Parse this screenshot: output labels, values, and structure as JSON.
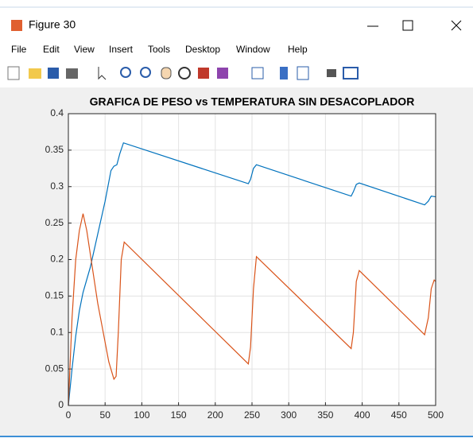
{
  "window": {
    "title": "Figure 30",
    "menu": [
      "File",
      "Edit",
      "View",
      "Insert",
      "Tools",
      "Desktop",
      "Window",
      "Help"
    ]
  },
  "chart_data": {
    "type": "line",
    "title": "GRAFICA DE PESO vs TEMPERATURA SIN DESACOPLADOR",
    "xlim": [
      0,
      500
    ],
    "xticks": [
      0,
      50,
      100,
      150,
      200,
      250,
      300,
      350,
      400,
      450,
      500
    ],
    "ylim": [
      0,
      0.4
    ],
    "yticks": [
      0,
      0.05,
      0.1,
      0.15,
      0.2,
      0.25,
      0.3,
      0.35,
      0.4
    ],
    "grid": true,
    "series": [
      {
        "color": "#0072bd",
        "x": [
          0,
          5,
          10,
          15,
          20,
          30,
          40,
          50,
          58,
          62,
          66,
          70,
          75,
          245,
          248,
          252,
          256,
          385,
          388,
          392,
          396,
          485,
          490,
          494,
          500
        ],
        "values": [
          0,
          0.05,
          0.095,
          0.13,
          0.155,
          0.19,
          0.235,
          0.28,
          0.322,
          0.328,
          0.33,
          0.345,
          0.36,
          0.304,
          0.31,
          0.325,
          0.33,
          0.287,
          0.293,
          0.303,
          0.305,
          0.275,
          0.28,
          0.287,
          0.286
        ]
      },
      {
        "color": "#d95319",
        "x": [
          0,
          5,
          10,
          15,
          20,
          25,
          40,
          55,
          62,
          65,
          68,
          72,
          76,
          245,
          248,
          252,
          256,
          385,
          388,
          392,
          396,
          485,
          490,
          494,
          498,
          500
        ],
        "values": [
          0,
          0.12,
          0.2,
          0.24,
          0.263,
          0.24,
          0.14,
          0.06,
          0.036,
          0.04,
          0.1,
          0.2,
          0.224,
          0.057,
          0.08,
          0.16,
          0.204,
          0.078,
          0.1,
          0.17,
          0.185,
          0.097,
          0.12,
          0.16,
          0.172,
          0.17
        ]
      }
    ]
  }
}
